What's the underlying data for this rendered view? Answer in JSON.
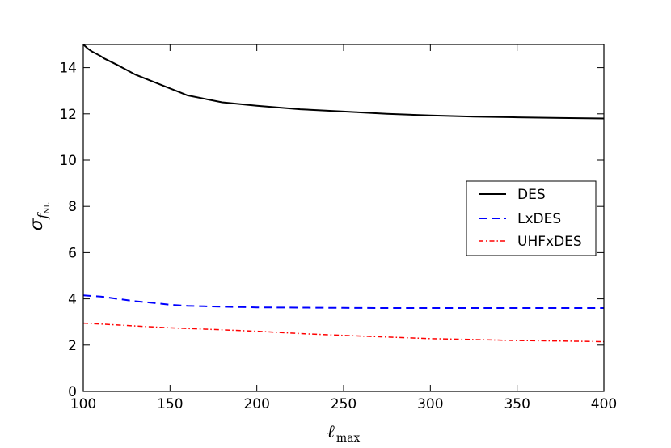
{
  "chart_data": {
    "type": "line",
    "xlabel": "ℓ",
    "xlabel_sub": "max",
    "ylabel": "σ",
    "ylabel_sub_main": "f",
    "ylabel_sub_sub": "NL",
    "xlim": [
      100,
      400
    ],
    "ylim": [
      0,
      15
    ],
    "xticks": [
      100,
      150,
      200,
      250,
      300,
      350,
      400
    ],
    "yticks": [
      0,
      2,
      4,
      6,
      8,
      10,
      12,
      14
    ],
    "grid": false,
    "legend_position": "center-right",
    "series": [
      {
        "name": "DES",
        "color": "#000000",
        "style": "solid",
        "x": [
          100,
          103,
          105,
          110,
          112,
          120,
          125,
          130,
          140,
          150,
          155,
          160,
          170,
          180,
          200,
          225,
          250,
          275,
          300,
          325,
          350,
          375,
          400
        ],
        "y": [
          15.0,
          14.8,
          14.7,
          14.5,
          14.4,
          14.1,
          13.9,
          13.7,
          13.4,
          13.1,
          12.95,
          12.8,
          12.65,
          12.5,
          12.35,
          12.2,
          12.1,
          12.0,
          11.93,
          11.88,
          11.85,
          11.82,
          11.8
        ]
      },
      {
        "name": "LxDES",
        "color": "#0000ff",
        "style": "dashed",
        "x": [
          100,
          110,
          120,
          130,
          140,
          150,
          160,
          170,
          180,
          200,
          225,
          250,
          275,
          300,
          325,
          350,
          375,
          400
        ],
        "y": [
          4.15,
          4.1,
          4.0,
          3.9,
          3.83,
          3.75,
          3.7,
          3.68,
          3.66,
          3.63,
          3.62,
          3.61,
          3.6,
          3.6,
          3.6,
          3.6,
          3.6,
          3.6
        ]
      },
      {
        "name": "UHFxDES",
        "color": "#ff0000",
        "style": "dashdot",
        "x": [
          100,
          125,
          150,
          175,
          200,
          225,
          250,
          275,
          300,
          325,
          350,
          375,
          400
        ],
        "y": [
          2.95,
          2.85,
          2.75,
          2.68,
          2.6,
          2.5,
          2.42,
          2.35,
          2.28,
          2.24,
          2.2,
          2.18,
          2.15
        ]
      }
    ]
  }
}
